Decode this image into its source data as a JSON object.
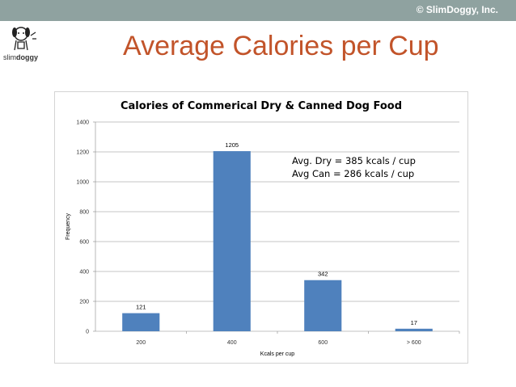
{
  "header": {
    "copyright": "© SlimDoggy, Inc.",
    "logo_text_light": "slim",
    "logo_text_bold": "doggy",
    "logo_icon": "dog-logo-icon",
    "bar_color": "#8fa2a0"
  },
  "slide": {
    "title": "Average Calories per Cup",
    "title_color": "#c2542a"
  },
  "chart_data": {
    "type": "bar",
    "title": "Calories of Commerical Dry & Canned Dog Food",
    "xlabel": "Kcals per cup",
    "ylabel": "Frequency",
    "categories": [
      "200",
      "400",
      "600",
      "> 600"
    ],
    "values": [
      121,
      1205,
      342,
      17
    ],
    "ylim": [
      0,
      1400
    ],
    "yticks": [
      0,
      200,
      400,
      600,
      800,
      1000,
      1200,
      1400
    ],
    "grid": true,
    "bar_color": "#4f81bd",
    "annotations": [
      "Avg. Dry = 385 kcals / cup",
      "Avg Can = 286 kcals / cup"
    ]
  }
}
